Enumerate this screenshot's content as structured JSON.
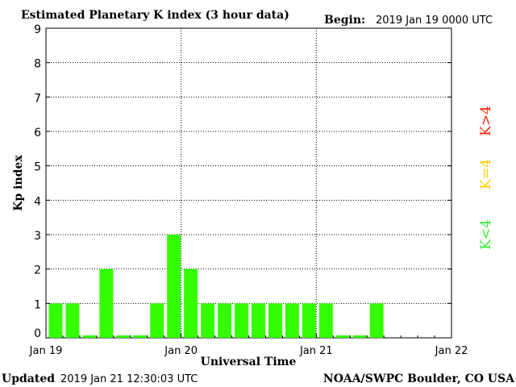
{
  "header": {
    "title": "Estimated Planetary K index (3 hour data)",
    "begin_label": "Begin:",
    "begin_value": "2019 Jan 19 0000 UTC"
  },
  "footer": {
    "updated_label": "Updated",
    "updated_value": "2019 Jan 21 12:30:03 UTC",
    "credit": "NOAA/SWPC Boulder, CO USA"
  },
  "legend": [
    {
      "label": "K>4",
      "color": "#ff2200"
    },
    {
      "label": "K=4",
      "color": "#ffcc00"
    },
    {
      "label": "K<4",
      "color": "#33ee33"
    }
  ],
  "chart_data": {
    "type": "bar",
    "title": "Estimated Planetary K index (3 hour data)",
    "xlabel": "Universal Time",
    "ylabel": "Kp index",
    "ylim": [
      0,
      9
    ],
    "yticks": [
      "0",
      "1",
      "2",
      "3",
      "4",
      "5",
      "6",
      "7",
      "8",
      "9"
    ],
    "xticks": [
      "Jan 19",
      "Jan 20",
      "Jan 21",
      "Jan 22"
    ],
    "interval_hours": 3,
    "grid": true,
    "bar_color": "#33ff00",
    "values": [
      1,
      1,
      0,
      2,
      0,
      0,
      1,
      3,
      2,
      1,
      1,
      1,
      1,
      1,
      1,
      1,
      1,
      0,
      0,
      1
    ]
  }
}
